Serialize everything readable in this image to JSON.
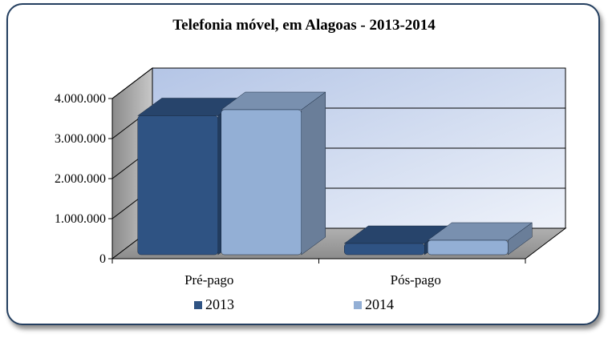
{
  "chart_data": {
    "type": "bar",
    "title": "Telefonia móvel, em Alagoas - 2013-2014",
    "categories": [
      "Pré-pago",
      "Pós-pago"
    ],
    "series": [
      {
        "name": "2013",
        "values": [
          3470000,
          280000
        ],
        "color": "#2f5383"
      },
      {
        "name": "2014",
        "values": [
          3620000,
          360000
        ],
        "color": "#93afd5"
      }
    ],
    "yticks": [
      "0",
      "1.000.000",
      "2.000.000",
      "3.000.000",
      "4.000.000"
    ],
    "ylim": [
      0,
      4000000
    ],
    "legend_position": "bottom",
    "grid": true
  }
}
